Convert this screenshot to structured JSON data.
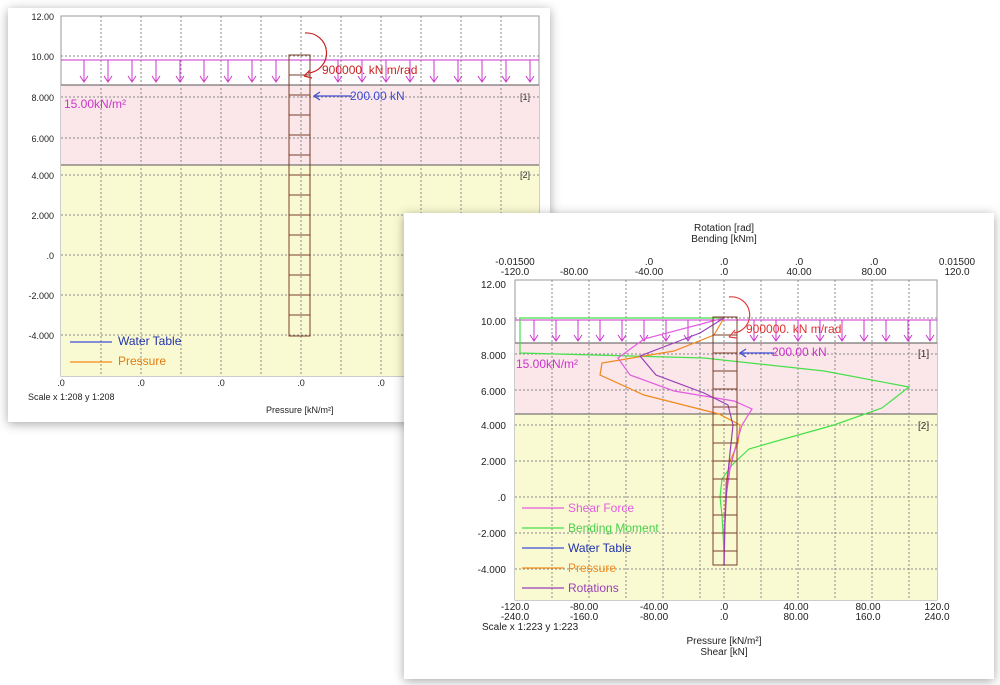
{
  "panels": [
    {
      "y_ticks": [
        "12.00",
        "10.00",
        "8.000",
        "6.000",
        "4.000",
        "2.000",
        ".0",
        "-2.000",
        "-4.000"
      ],
      "x_ticks": [
        ".0",
        ".0",
        ".0",
        ".0",
        ".0"
      ],
      "surcharge_label": "15.00kN/m²",
      "spring_label": "900000. kN m/rad",
      "force_label": "200.00 kN",
      "layer_labels": [
        "[1]",
        "[2]"
      ],
      "legend": [
        {
          "label": "Water Table",
          "color": "#3d4ed6"
        },
        {
          "label": "Pressure",
          "color": "#f08a1c"
        }
      ],
      "scale_text": "Scale x 1:208  y 1:208",
      "x_title": "Pressure [kN/m²]"
    },
    {
      "top_title_1": "Rotation [rad]",
      "top_title_2": "Bending [kNm]",
      "top_ticks_rot": [
        "-0.01500",
        ".0",
        ".0",
        ".0",
        ".0",
        ".0",
        "0.01500"
      ],
      "top_ticks_bend": [
        "-120.0",
        "-80.00",
        "-40.00",
        ".0",
        "40.00",
        "80.00",
        "120.0"
      ],
      "y_ticks": [
        "12.00",
        "10.00",
        "8.000",
        "6.000",
        "4.000",
        "2.000",
        ".0",
        "-2.000",
        "-4.000"
      ],
      "bottom_ticks_1": [
        "-120.0",
        "-80.00",
        "-40.00",
        ".0",
        "40.00",
        "80.00",
        "120.0"
      ],
      "bottom_ticks_2": [
        "-240.0",
        "-160.0",
        "-80.00",
        ".0",
        "80.00",
        "160.0",
        "240.0"
      ],
      "surcharge_label": "15.00kN/m²",
      "spring_label": "900000. kN m/rad",
      "force_label": "200.00 kN",
      "layer_labels": [
        "[1]",
        "[2]"
      ],
      "legend": [
        {
          "label": "Shear Force",
          "color": "#e35ce0"
        },
        {
          "label": "Bending Moment",
          "color": "#46e04a"
        },
        {
          "label": "Water Table",
          "color": "#3d4ed6"
        },
        {
          "label": "Pressure",
          "color": "#f08a1c"
        },
        {
          "label": "Rotations",
          "color": "#9a3fb8"
        }
      ],
      "scale_text": "Scale x 1:223  y 1:223",
      "x_title_1": "Pressure [kN/m²]",
      "x_title_2": "Shear [kN]"
    }
  ],
  "colors": {
    "layer1": "#fbe6ea",
    "layer2": "#fafad2",
    "surcharge": "#cc33cc",
    "wall": "#7a3d2a",
    "spring": "#cc2222",
    "grid": "#888888"
  }
}
